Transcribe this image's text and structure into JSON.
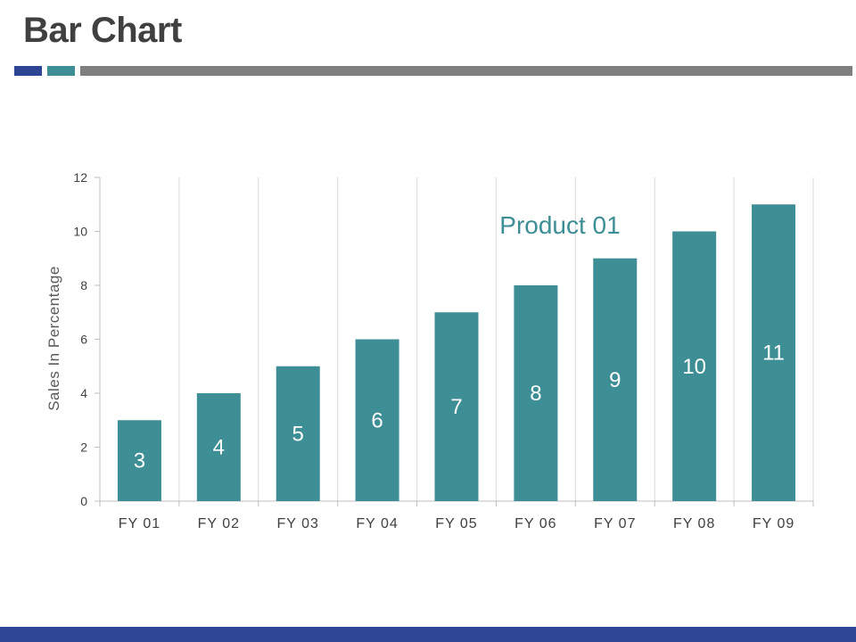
{
  "slide": {
    "title": "Bar Chart"
  },
  "colors": {
    "title_text": "#404040",
    "rule_blue": "#2E4596",
    "rule_teal": "#3E8E96",
    "rule_gray": "#7F7F7F",
    "bottom_bar": "#2E4596",
    "bar": "#3E8E96",
    "series_label": "#3E8E96",
    "grid": "#D9D9D9",
    "axis": "#BFBFBF"
  },
  "chart_data": {
    "type": "bar",
    "categories": [
      "FY 01",
      "FY 02",
      "FY 03",
      "FY 04",
      "FY 05",
      "FY 06",
      "FY 07",
      "FY 08",
      "FY 09"
    ],
    "series": [
      {
        "name": "Product 01",
        "values": [
          3,
          4,
          5,
          6,
          7,
          8,
          9,
          10,
          11
        ]
      }
    ],
    "data_labels": [
      "3",
      "4",
      "5",
      "6",
      "7",
      "8",
      "9",
      "10",
      "11"
    ],
    "title": "",
    "xlabel": "",
    "ylabel": "Sales In Percentage",
    "ylim": [
      0,
      12
    ],
    "yticks": [
      0,
      2,
      4,
      6,
      8,
      10,
      12
    ],
    "ytick_labels": [
      "0",
      "2",
      "4",
      "6",
      "8",
      "10",
      "12"
    ],
    "grid": "vertical",
    "legend": "none"
  }
}
